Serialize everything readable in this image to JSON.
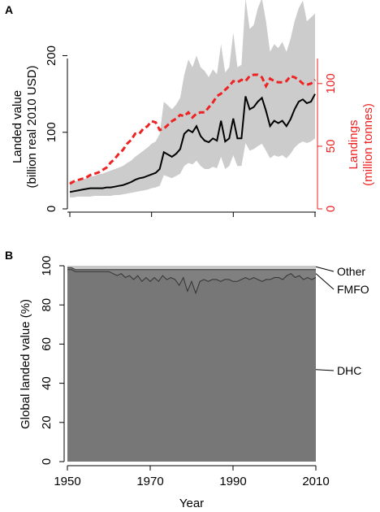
{
  "chart_data": [
    {
      "panel": "A",
      "type": "line",
      "ylabel_lines": [
        "Landed value",
        "(billion real 2010 USD)"
      ],
      "y2label_lines": [
        "Landings",
        "(million tonnes)"
      ],
      "xlim": [
        1950,
        2010
      ],
      "ylim": [
        0,
        260
      ],
      "y2lim": [
        0,
        120
      ],
      "yticks": [
        0,
        100,
        200
      ],
      "y2ticks": [
        0,
        50,
        100
      ],
      "colors": {
        "value_line": "#000000",
        "band": "#cccccc",
        "landings": "#ee2222"
      },
      "series": [
        {
          "role": "landed value",
          "axis": "left",
          "x": [
            1950,
            1951,
            1952,
            1953,
            1954,
            1955,
            1956,
            1957,
            1958,
            1959,
            1960,
            1961,
            1962,
            1963,
            1964,
            1965,
            1966,
            1967,
            1968,
            1969,
            1970,
            1971,
            1972,
            1973,
            1974,
            1975,
            1976,
            1977,
            1978,
            1979,
            1980,
            1981,
            1982,
            1983,
            1984,
            1985,
            1986,
            1987,
            1988,
            1989,
            1990,
            1991,
            1992,
            1993,
            1994,
            1995,
            1996,
            1997,
            1998,
            1999,
            2000,
            2001,
            2002,
            2003,
            2004,
            2005,
            2006,
            2007,
            2008,
            2009,
            2010
          ],
          "values": [
            22,
            23,
            24,
            25,
            26,
            27,
            27,
            27,
            27,
            28,
            28,
            29,
            30,
            31,
            33,
            35,
            38,
            40,
            41,
            43,
            45,
            47,
            52,
            74,
            71,
            68,
            72,
            78,
            98,
            103,
            100,
            108,
            95,
            89,
            87,
            92,
            89,
            115,
            88,
            92,
            118,
            92,
            92,
            147,
            130,
            133,
            140,
            145,
            128,
            108,
            115,
            112,
            115,
            108,
            117,
            130,
            140,
            143,
            138,
            140,
            150
          ],
          "band_upper": [
            37,
            36,
            37,
            38,
            40,
            42,
            43,
            45,
            46,
            48,
            50,
            52,
            54,
            56,
            60,
            63,
            68,
            72,
            76,
            80,
            85,
            88,
            98,
            140,
            135,
            130,
            136,
            145,
            175,
            195,
            185,
            200,
            185,
            180,
            172,
            182,
            176,
            215,
            178,
            185,
            230,
            185,
            188,
            275,
            235,
            240,
            262,
            275,
            245,
            205,
            215,
            210,
            218,
            205,
            222,
            245,
            262,
            272,
            245,
            250,
            255
          ],
          "band_lower": [
            15,
            15,
            16,
            16,
            16,
            16,
            17,
            17,
            17,
            17,
            17,
            18,
            18,
            19,
            20,
            21,
            22,
            23,
            24,
            25,
            27,
            28,
            30,
            44,
            42,
            40,
            43,
            46,
            56,
            60,
            58,
            63,
            56,
            52,
            52,
            55,
            53,
            68,
            52,
            56,
            70,
            56,
            56,
            86,
            76,
            78,
            82,
            85,
            76,
            66,
            70,
            68,
            70,
            66,
            72,
            80,
            85,
            88,
            86,
            88,
            92
          ]
        },
        {
          "role": "landings",
          "axis": "right",
          "x": [
            1950,
            1951,
            1952,
            1953,
            1954,
            1955,
            1956,
            1957,
            1958,
            1959,
            1960,
            1961,
            1962,
            1963,
            1964,
            1965,
            1966,
            1967,
            1968,
            1969,
            1970,
            1971,
            1972,
            1973,
            1974,
            1975,
            1976,
            1977,
            1978,
            1979,
            1980,
            1981,
            1982,
            1983,
            1984,
            1985,
            1986,
            1987,
            1988,
            1989,
            1990,
            1991,
            1992,
            1993,
            1994,
            1995,
            1996,
            1997,
            1998,
            1999,
            2000,
            2001,
            2002,
            2003,
            2004,
            2005,
            2006,
            2007,
            2008,
            2009,
            2010
          ],
          "values": [
            20,
            22,
            23,
            24,
            25,
            27,
            28,
            29,
            31,
            33,
            37,
            40,
            44,
            47,
            52,
            55,
            60,
            60,
            64,
            66,
            70,
            69,
            63,
            64,
            67,
            70,
            72,
            75,
            74,
            77,
            73,
            76,
            77,
            77,
            81,
            85,
            90,
            92,
            95,
            98,
            102,
            101,
            103,
            102,
            106,
            107,
            107,
            105,
            98,
            104,
            102,
            101,
            101,
            102,
            106,
            105,
            103,
            100,
            99,
            100,
            103
          ]
        }
      ]
    },
    {
      "panel": "B",
      "type": "area",
      "ylabel": "Global landed value (%)",
      "xlabel": "Year",
      "xlim": [
        1950,
        2010
      ],
      "ylim": [
        0,
        100
      ],
      "xticks": [
        1950,
        1970,
        1990,
        2010
      ],
      "yticks": [
        0,
        20,
        40,
        60,
        80,
        100
      ],
      "colors": {
        "DHC": "#777777",
        "FMFO": "#808080",
        "Other": "#c8c8c8"
      },
      "x": [
        1950,
        1951,
        1952,
        1953,
        1954,
        1955,
        1956,
        1957,
        1958,
        1959,
        1960,
        1961,
        1962,
        1963,
        1964,
        1965,
        1966,
        1967,
        1968,
        1969,
        1970,
        1971,
        1972,
        1973,
        1974,
        1975,
        1976,
        1977,
        1978,
        1979,
        1980,
        1981,
        1982,
        1983,
        1984,
        1985,
        1986,
        1987,
        1988,
        1989,
        1990,
        1991,
        1992,
        1993,
        1994,
        1995,
        1996,
        1997,
        1998,
        1999,
        2000,
        2001,
        2002,
        2003,
        2004,
        2005,
        2006,
        2007,
        2008,
        2009,
        2010
      ],
      "series": [
        {
          "name": "DHC",
          "values": [
            98,
            98,
            97,
            97,
            97,
            97,
            97,
            97,
            97,
            97,
            97,
            96,
            95,
            96,
            94,
            95,
            93,
            95,
            92,
            94,
            92,
            94,
            92,
            95,
            93,
            94,
            93,
            90,
            94,
            87,
            92,
            86,
            92,
            93,
            92,
            93,
            93,
            92,
            93,
            93,
            92,
            92,
            93,
            94,
            93,
            94,
            93,
            92,
            93,
            93,
            94,
            94,
            93,
            95,
            96,
            94,
            95,
            93,
            94,
            93,
            94
          ]
        },
        {
          "name": "FMFO",
          "values": [
            99,
            99,
            98,
            98,
            98,
            98,
            98,
            98,
            98,
            98,
            98,
            98,
            98,
            98,
            98,
            98,
            98,
            98,
            98,
            98,
            98,
            98,
            98,
            98,
            98,
            98,
            98,
            98,
            98,
            98,
            98,
            98,
            98,
            98,
            98,
            98,
            98,
            98,
            98,
            98,
            98,
            98,
            98,
            98,
            98,
            98,
            98,
            98,
            98,
            98,
            98,
            98,
            98,
            98,
            98,
            98,
            98,
            98,
            98,
            98,
            98
          ]
        },
        {
          "name": "Other",
          "values": [
            100,
            100,
            100,
            100,
            100,
            100,
            100,
            100,
            100,
            100,
            100,
            100,
            100,
            100,
            100,
            100,
            100,
            100,
            100,
            100,
            100,
            100,
            100,
            100,
            100,
            100,
            100,
            100,
            100,
            100,
            100,
            100,
            100,
            100,
            100,
            100,
            100,
            100,
            100,
            100,
            100,
            100,
            100,
            100,
            100,
            100,
            100,
            100,
            100,
            100,
            100,
            100,
            100,
            100,
            100,
            100,
            100,
            100,
            100,
            100,
            100
          ]
        }
      ]
    }
  ]
}
